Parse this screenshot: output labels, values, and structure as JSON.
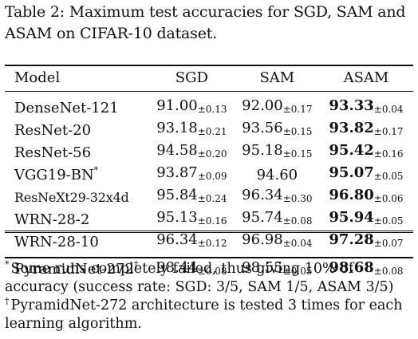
{
  "caption": "Table 2: Maximum test accuracies for SGD, SAM and ASAM on CIFAR-10 dataset.",
  "columns": [
    "Model",
    "SGD",
    "SAM",
    "ASAM"
  ],
  "rows": [
    {
      "model": "DenseNet-121",
      "sgd": "91.00",
      "sgd_std": "±0.13",
      "sam": "92.00",
      "sam_std": "±0.17",
      "asam": "93.33",
      "asam_std": "±0.04"
    },
    {
      "model": "ResNet-20",
      "sgd": "93.18",
      "sgd_std": "±0.21",
      "sam": "93.56",
      "sam_std": "±0.15",
      "asam": "93.82",
      "asam_std": "±0.17"
    },
    {
      "model": "ResNet-56",
      "sgd": "94.58",
      "sgd_std": "±0.20",
      "sam": "95.18",
      "sam_std": "±0.15",
      "asam": "95.42",
      "asam_std": "±0.16"
    },
    {
      "model": "VGG19-BN",
      "model_mark": "*",
      "sgd": "93.87",
      "sgd_std": "±0.09",
      "sam": "94.60",
      "sam_std": "",
      "asam": "95.07",
      "asam_std": "±0.05"
    },
    {
      "model": "ResNeXt29-32x4d",
      "sgd": "95.84",
      "sgd_std": "±0.24",
      "sam": "96.34",
      "sam_std": "±0.30",
      "asam": "96.80",
      "asam_std": "±0.06"
    },
    {
      "model": "WRN-28-2",
      "sgd": "95.13",
      "sgd_std": "±0.16",
      "sam": "95.74",
      "sam_std": "±0.08",
      "asam": "95.94",
      "asam_std": "±0.05"
    },
    {
      "model": "WRN-28-10",
      "sgd": "96.34",
      "sgd_std": "±0.12",
      "sam": "96.98",
      "sam_std": "±0.04",
      "asam": "97.28",
      "asam_std": "±0.07"
    }
  ],
  "pyramid_row": {
    "model": "PyramidNet-272",
    "model_mark": "†",
    "sgd": "98.44",
    "sgd_std": "±0.08",
    "sam": "98.55",
    "sam_std": "±0.05",
    "asam": "98.68",
    "asam_std": "±0.08"
  },
  "footnotes": [
    {
      "mark": "*",
      "text": "Some runs completely failed, thus giving 10% of accuracy (success rate: SGD: 3/5, SAM 1/5, ASAM 3/5)"
    },
    {
      "mark": "†",
      "text": "PyramidNet-272 architecture is tested 3 times for each learning algorithm."
    }
  ]
}
